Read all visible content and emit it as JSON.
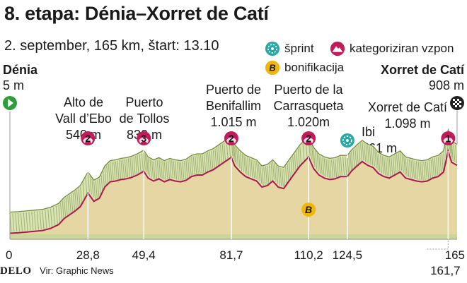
{
  "header": {
    "title": "8. etapa: Dénia–Xorret de Catí",
    "subtitle": "2. september, 165 km, štart: 13.10"
  },
  "legend": [
    {
      "label": "šprint",
      "icon": "sprint-icon"
    },
    {
      "label": "kategoriziran vzpon",
      "icon": "climb-icon"
    },
    {
      "label": "bonifikacija",
      "icon": "bonus-icon",
      "symbol": "B"
    }
  ],
  "start": {
    "name": "Dénia",
    "elevation": "5 m"
  },
  "finish": {
    "name": "Xorret de Catí",
    "elevation": "908 m"
  },
  "climbs": [
    {
      "name_line1": "Alto de",
      "name_line2": "Vall d’Ebo",
      "elevation": "540 m",
      "category": "2",
      "km": 28.8
    },
    {
      "name_line1": "Puerto",
      "name_line2": "de Tollos",
      "elevation": "830 m",
      "category": "3",
      "km": 49.4
    },
    {
      "name_line1": "Puerto de",
      "name_line2": "Benifallim",
      "elevation": "1.015 m",
      "category": "2",
      "km": 81.7
    },
    {
      "name_line1": "Puerto de la",
      "name_line2": "Carrasqueta",
      "elevation": "1.020m",
      "category": "2",
      "km": 110.2
    },
    {
      "name_line1": "Xorret de Catí",
      "name_line2": "",
      "elevation": "1.098 m",
      "category": "1",
      "km": 161.7
    }
  ],
  "sprint": {
    "name": "Ibi",
    "elevation": "761 m",
    "km": 124.5
  },
  "bonus": {
    "symbol": "B",
    "km": 110.2
  },
  "x_ticks": [
    "0",
    "28,8",
    "49,4",
    "81,7",
    "110,2",
    "124,5",
    "165",
    "161,7"
  ],
  "footer": {
    "brand": "DELO",
    "source": "Vir: Graphic News"
  },
  "colors": {
    "fill": "#e6d6a4",
    "profile_line": "#b0154c",
    "ridge_light": "#d8e4b4",
    "ridge_dark": "#77883d",
    "climb_marker": "#c21b5c",
    "sprint_marker": "#27a9a3",
    "bonus_marker": "#f2b705",
    "start_marker": "#2e9e3a"
  },
  "chart_data": {
    "type": "area",
    "title": "8. etapa: Dénia–Xorret de Catí",
    "xlabel": "",
    "ylabel": "",
    "xlim": [
      0,
      165
    ],
    "ylim": [
      0,
      1100
    ],
    "x": [
      0,
      3,
      6,
      9,
      12,
      15,
      18,
      20,
      22,
      24,
      26,
      28.8,
      31,
      33,
      35,
      37,
      39,
      41,
      43,
      45,
      47,
      49.4,
      51,
      53,
      55,
      57,
      59,
      61,
      63,
      65,
      67,
      69,
      71,
      73,
      75,
      77,
      79,
      81.7,
      83,
      85,
      87,
      89,
      91,
      93,
      95,
      97,
      99,
      101,
      103,
      105,
      107,
      110.2,
      112,
      114,
      116,
      118,
      120,
      122,
      124.5,
      126,
      128,
      130,
      132,
      134,
      136,
      138,
      140,
      142,
      144,
      146,
      148,
      150,
      152,
      154,
      156,
      158,
      160,
      161.7,
      163,
      165
    ],
    "series": [
      {
        "values": [
          5,
          10,
          20,
          30,
          40,
          70,
          120,
          200,
          250,
          300,
          360,
          540,
          430,
          470,
          620,
          690,
          700,
          720,
          730,
          750,
          780,
          830,
          740,
          700,
          730,
          690,
          720,
          700,
          690,
          710,
          760,
          780,
          780,
          820,
          850,
          900,
          950,
          1015,
          900,
          820,
          760,
          730,
          700,
          620,
          640,
          700,
          620,
          600,
          700,
          800,
          900,
          1020,
          870,
          780,
          740,
          720,
          730,
          760,
          761,
          830,
          900,
          960,
          910,
          880,
          800,
          760,
          740,
          780,
          820,
          740,
          720,
          700,
          690,
          700,
          740,
          760,
          820,
          1098,
          950,
          908
        ]
      }
    ]
  }
}
